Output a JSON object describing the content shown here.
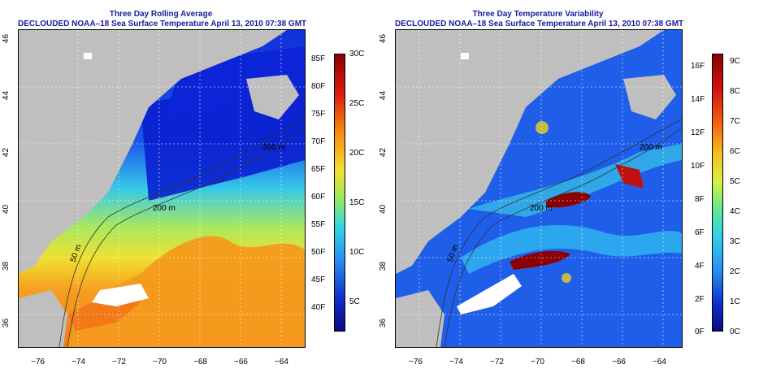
{
  "left": {
    "title": "Three Day Rolling Average",
    "subtitle": "DECLOUDED NOAA–18 Sea Surface Temperature April 13, 2010 07:38 GMT",
    "colorbar_f": [
      "85F",
      "80F",
      "75F",
      "70F",
      "65F",
      "60F",
      "55F",
      "50F",
      "45F",
      "40F"
    ],
    "colorbar_c": [
      "30C",
      "25C",
      "20C",
      "15C",
      "10C",
      "5C"
    ],
    "isobath_labels": [
      "200 m",
      "200 m",
      "50 m"
    ]
  },
  "right": {
    "title": "Three Day Temperature Variability",
    "subtitle": "DECLOUDED NOAA–18 Sea Surface Temperature April 13, 2010 07:38 GMT",
    "colorbar_f": [
      "16F",
      "14F",
      "12F",
      "10F",
      "8F",
      "6F",
      "4F",
      "2F",
      "0F"
    ],
    "colorbar_c": [
      "9C",
      "8C",
      "7C",
      "6C",
      "5C",
      "4C",
      "3C",
      "2C",
      "1C",
      "0C"
    ],
    "isobath_labels": [
      "200 m",
      "200 m",
      "50 m"
    ]
  },
  "axes": {
    "lon_ticks": [
      "−76",
      "−74",
      "−72",
      "−70",
      "−68",
      "−66",
      "−64"
    ],
    "lat_ticks": [
      "46",
      "44",
      "42",
      "40",
      "38",
      "36"
    ]
  },
  "colors": {
    "land": "#bfbfbf",
    "cold": "#0a1fd6",
    "mid": "#2fd0e8",
    "warm": "#f2a020",
    "hot": "#8b0000"
  }
}
